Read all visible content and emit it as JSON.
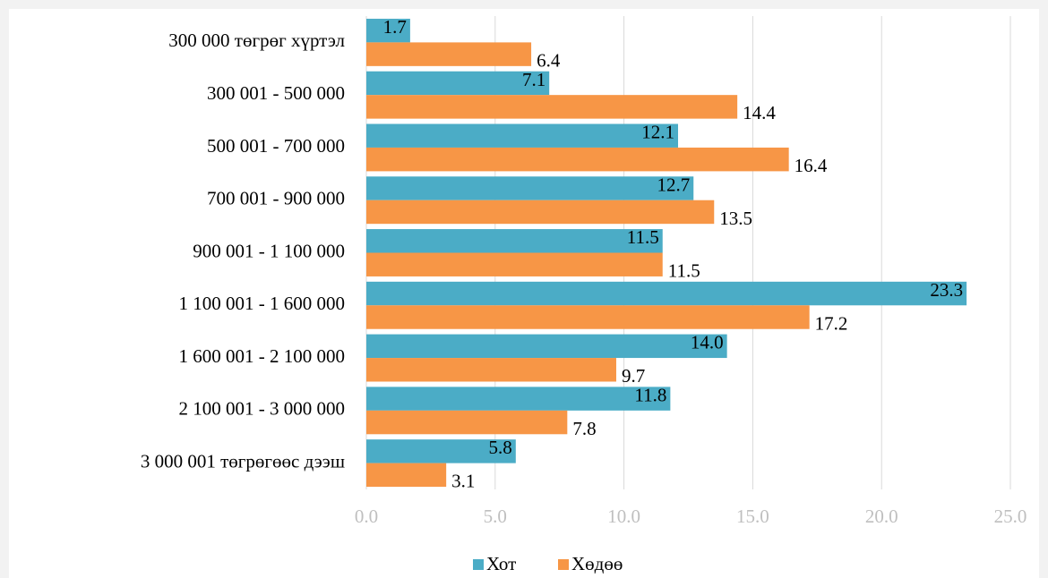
{
  "chart_data": {
    "type": "bar",
    "orientation": "horizontal",
    "categories": [
      "300 000 төгрөг хүртэл",
      "300 001 - 500 000",
      "500 001 - 700 000",
      "700 001 - 900 000",
      "900 001 - 1 100 000",
      "1 100 001 - 1 600 000",
      "1 600 001 - 2 100 000",
      "2 100 001 - 3 000 000",
      "3 000 001 төгрөгөөс дээш"
    ],
    "series": [
      {
        "name": "Хот",
        "color": "#4bacc6",
        "values": [
          1.7,
          7.1,
          12.1,
          12.7,
          11.5,
          23.3,
          14.0,
          11.8,
          5.8
        ],
        "value_labels": [
          "1.7",
          "7.1",
          "12.1",
          "12.7",
          "11.5",
          "23.3",
          "14.0",
          "11.8",
          "5.8"
        ]
      },
      {
        "name": "Хөдөө",
        "color": "#f79646",
        "values": [
          6.4,
          14.4,
          16.4,
          13.5,
          11.5,
          17.2,
          9.7,
          7.8,
          3.1
        ],
        "value_labels": [
          "6.4",
          "14.4",
          "16.4",
          "13.5",
          "11.5",
          "17.2",
          "9.7",
          "7.8",
          "3.1"
        ]
      }
    ],
    "xlim": [
      0,
      25
    ],
    "xticks": [
      {
        "value": 0,
        "label": "0.0"
      },
      {
        "value": 5,
        "label": "5.0"
      },
      {
        "value": 10,
        "label": "10.0"
      },
      {
        "value": 15,
        "label": "15.0"
      },
      {
        "value": 20,
        "label": "20.0"
      },
      {
        "value": 25,
        "label": "25.0"
      }
    ],
    "grid": true,
    "legend": "bottom"
  }
}
